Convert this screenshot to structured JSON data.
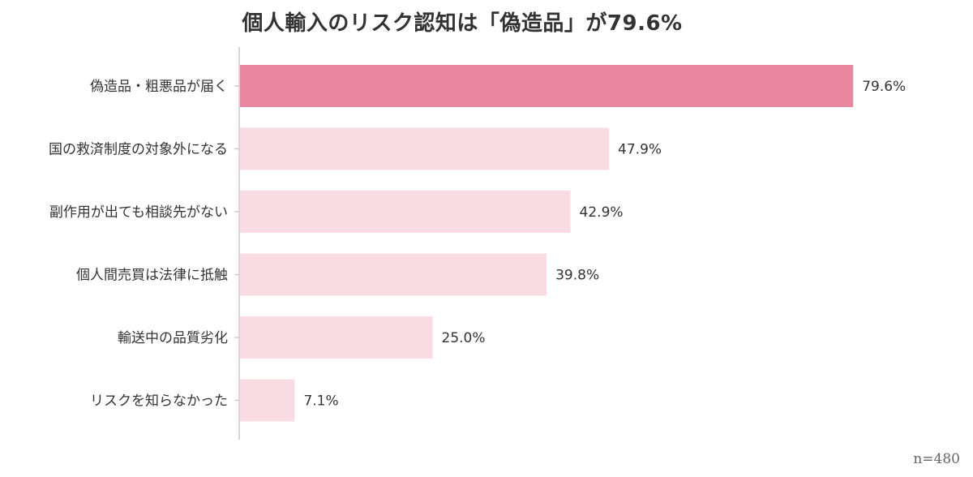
{
  "chart_data": {
    "type": "bar",
    "orientation": "horizontal",
    "title": "個人輸入のリスク認知は「偽造品」が79.6%",
    "categories": [
      "偽造品・粗悪品が届く",
      "国の救済制度の対象外になる",
      "副作用が出ても相談先がない",
      "個人間売買は法律に抵触",
      "輸送中の品質劣化",
      "リスクを知らなかった"
    ],
    "values": [
      79.6,
      47.9,
      42.9,
      39.8,
      25.0,
      7.1
    ],
    "value_labels": [
      "79.6%",
      "47.9%",
      "42.9%",
      "39.8%",
      "25.0%",
      "7.1%"
    ],
    "xlim": [
      0,
      100
    ],
    "unit": "%",
    "grid": false,
    "legend": "none",
    "note": "n=480",
    "colors": {
      "highlight": "#e8879f",
      "default": "#f9dbe4",
      "axis": "#cccccc",
      "text": "#333333"
    },
    "highlight_index": 0
  }
}
